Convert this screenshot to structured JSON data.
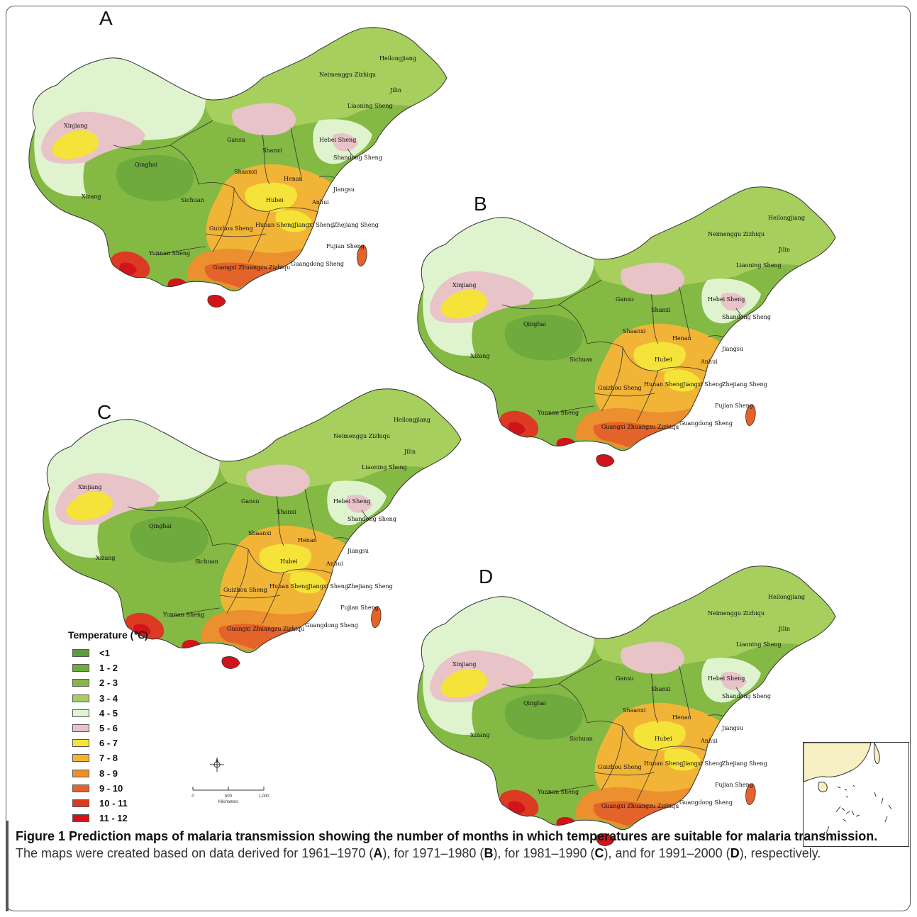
{
  "panels": [
    {
      "letter": "A",
      "period": "1961–1970"
    },
    {
      "letter": "B",
      "period": "1971–1980"
    },
    {
      "letter": "C",
      "period": "1981–1990"
    },
    {
      "letter": "D",
      "period": "1991–2000"
    }
  ],
  "map_labels": {
    "heilongjiang": "Heilongjiang",
    "neimenggu": "Neimenggu Zizhiqu",
    "jilin": "Jilin",
    "liaoning": "Liaoning Sheng",
    "xinjiang": "Xinjiang",
    "gansu": "Gansu",
    "qinghai": "Qinghai",
    "xizang": "Xizang",
    "sichuan": "Sichuan",
    "shanxi": "Shanxi",
    "hebei": "Hebei Sheng",
    "shandong": "Shandong Sheng",
    "henan": "Henan",
    "hubei": "Hubei",
    "jiangsu": "Jiangsu",
    "anhui": "Anhui",
    "zhejiang": "Zhejiang Sheng",
    "hunan": "Hunan Sheng",
    "jiangxi": "Jiangxi Sheng",
    "guizhou": "Guizhou Sheng",
    "fujian": "Fujian Sheng",
    "yunnan": "Yunnan Sheng",
    "guangxi": "Guangxi Zhuangzu Zizhiqu",
    "guangdong": "Guangdong Sheng",
    "shaanxi": "Shaanxi"
  },
  "legend": {
    "title": "Temperature (℃)",
    "items": [
      {
        "label": "<1",
        "color": "#5e9e3a"
      },
      {
        "label": "1 - 2",
        "color": "#6eaa3e"
      },
      {
        "label": "2 - 3",
        "color": "#84b944"
      },
      {
        "label": "3 - 4",
        "color": "#a6cf5e"
      },
      {
        "label": "4 - 5",
        "color": "#dff3cf"
      },
      {
        "label": "5 - 6",
        "color": "#e8c3c8"
      },
      {
        "label": "6 - 7",
        "color": "#f5e339"
      },
      {
        "label": "7 - 8",
        "color": "#f2b437"
      },
      {
        "label": "8 - 9",
        "color": "#ec8f2e"
      },
      {
        "label": "9 - 10",
        "color": "#e3632a"
      },
      {
        "label": "10 - 11",
        "color": "#dc3a22"
      },
      {
        "label": "11 - 12",
        "color": "#d2141a"
      }
    ]
  },
  "scale_bar": {
    "tick_0": "0",
    "tick_1": "500",
    "tick_2": "1,000",
    "unit": "Kilometers"
  },
  "caption": {
    "figure_label": "Figure 1",
    "bold_text": "Prediction maps of malaria transmission showing the number of months in which temperatures are suitable for malaria transmission.",
    "text_1": "The maps were created based on data derived for 1961–1970 (",
    "ref_a": "A",
    "text_2": "), for 1971–1980 (",
    "ref_b": "B",
    "text_3": "), for 1981–1990 (",
    "ref_c": "C",
    "text_4": "), and for 1991–2000 (",
    "ref_d": "D",
    "text_5": "), respectively."
  }
}
